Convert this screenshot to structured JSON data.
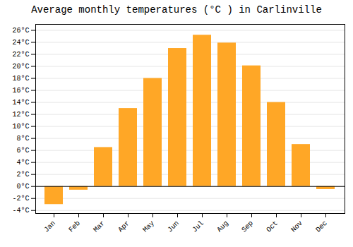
{
  "chart_data": {
    "type": "bar",
    "title": "Average monthly temperatures (°C ) in Carlinville",
    "categories": [
      "Jan",
      "Feb",
      "Mar",
      "Apr",
      "May",
      "Jun",
      "Jul",
      "Aug",
      "Sep",
      "Oct",
      "Nov",
      "Dec"
    ],
    "values": [
      -3.0,
      -0.6,
      6.5,
      13.0,
      18.0,
      23.0,
      25.2,
      23.9,
      20.1,
      14.0,
      7.0,
      -0.5
    ],
    "color": "#FFA726",
    "ylim": [
      -4.5,
      27
    ],
    "yticks": [
      {
        "value": -4,
        "label": "-4°C"
      },
      {
        "value": -2,
        "label": "-2°C"
      },
      {
        "value": 0,
        "label": "0°C"
      },
      {
        "value": 2,
        "label": "2°C"
      },
      {
        "value": 4,
        "label": "4°C"
      },
      {
        "value": 6,
        "label": "6°C"
      },
      {
        "value": 8,
        "label": "8°C"
      },
      {
        "value": 10,
        "label": "10°C"
      },
      {
        "value": 12,
        "label": "12°C"
      },
      {
        "value": 14,
        "label": "14°C"
      },
      {
        "value": 16,
        "label": "16°C"
      },
      {
        "value": 18,
        "label": "18°C"
      },
      {
        "value": 20,
        "label": "20°C"
      },
      {
        "value": 22,
        "label": "22°C"
      },
      {
        "value": 24,
        "label": "24°C"
      },
      {
        "value": 26,
        "label": "26°C"
      }
    ],
    "grid": true
  }
}
